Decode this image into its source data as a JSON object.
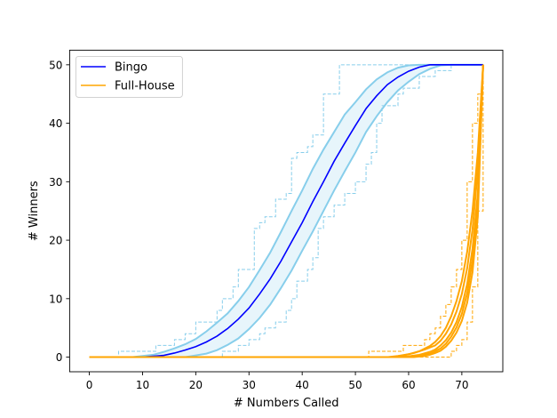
{
  "chart_data": {
    "type": "line",
    "title": "",
    "xlabel": "# Numbers Called",
    "ylabel": "# Winners",
    "xlim": [
      -3.7,
      77.7
    ],
    "ylim": [
      -2.5,
      52.5
    ],
    "xticks": [
      0,
      10,
      20,
      30,
      40,
      50,
      60,
      70
    ],
    "yticks": [
      0,
      10,
      20,
      30,
      40,
      50
    ],
    "legend_position": "top-left",
    "grid": false,
    "series": [
      {
        "name": "Bingo",
        "color": "#0000ff",
        "mean": [
          [
            0,
            0
          ],
          [
            10,
            0
          ],
          [
            14,
            0.3
          ],
          [
            16,
            0.7
          ],
          [
            18,
            1.2
          ],
          [
            20,
            1.8
          ],
          [
            22,
            2.6
          ],
          [
            24,
            3.6
          ],
          [
            26,
            4.9
          ],
          [
            28,
            6.5
          ],
          [
            30,
            8.4
          ],
          [
            32,
            10.8
          ],
          [
            34,
            13.4
          ],
          [
            36,
            16.4
          ],
          [
            38,
            19.7
          ],
          [
            40,
            23.0
          ],
          [
            42,
            26.6
          ],
          [
            44,
            30.0
          ],
          [
            46,
            33.5
          ],
          [
            48,
            36.6
          ],
          [
            50,
            39.6
          ],
          [
            52,
            42.5
          ],
          [
            54,
            44.7
          ],
          [
            56,
            46.6
          ],
          [
            58,
            47.9
          ],
          [
            60,
            48.9
          ],
          [
            62,
            49.6
          ],
          [
            64,
            50
          ],
          [
            74,
            50
          ]
        ],
        "band_color": "#87ceeb",
        "band_upper": [
          [
            0,
            0
          ],
          [
            8,
            0
          ],
          [
            12,
            0.4
          ],
          [
            14,
            0.9
          ],
          [
            16,
            1.5
          ],
          [
            18,
            2.2
          ],
          [
            20,
            3.1
          ],
          [
            22,
            4.4
          ],
          [
            24,
            5.9
          ],
          [
            26,
            7.5
          ],
          [
            28,
            9.6
          ],
          [
            30,
            12.0
          ],
          [
            32,
            14.9
          ],
          [
            34,
            17.9
          ],
          [
            36,
            21.4
          ],
          [
            38,
            25.0
          ],
          [
            40,
            28.5
          ],
          [
            42,
            32.2
          ],
          [
            44,
            35.5
          ],
          [
            46,
            38.5
          ],
          [
            48,
            41.5
          ],
          [
            50,
            43.6
          ],
          [
            52,
            45.8
          ],
          [
            54,
            47.5
          ],
          [
            56,
            48.7
          ],
          [
            58,
            49.5
          ],
          [
            60,
            49.9
          ],
          [
            62,
            50
          ],
          [
            74,
            50
          ]
        ],
        "band_lower": [
          [
            0,
            0
          ],
          [
            18,
            0
          ],
          [
            20,
            0.3
          ],
          [
            22,
            0.6
          ],
          [
            24,
            1.2
          ],
          [
            26,
            2.1
          ],
          [
            28,
            3.2
          ],
          [
            30,
            4.8
          ],
          [
            32,
            6.7
          ],
          [
            34,
            9.0
          ],
          [
            36,
            11.8
          ],
          [
            38,
            14.8
          ],
          [
            40,
            18.2
          ],
          [
            42,
            21.5
          ],
          [
            44,
            25.0
          ],
          [
            46,
            28.5
          ],
          [
            48,
            31.8
          ],
          [
            50,
            35.0
          ],
          [
            52,
            38.5
          ],
          [
            54,
            41.2
          ],
          [
            56,
            43.6
          ],
          [
            58,
            45.6
          ],
          [
            60,
            47.1
          ],
          [
            62,
            48.4
          ],
          [
            64,
            49.3
          ],
          [
            66,
            49.9
          ],
          [
            68,
            50
          ],
          [
            74,
            50
          ]
        ],
        "envelope_upper": [
          [
            0,
            0
          ],
          [
            5,
            0
          ],
          [
            5.5,
            1
          ],
          [
            12,
            1
          ],
          [
            12.5,
            2
          ],
          [
            15,
            2
          ],
          [
            16,
            3
          ],
          [
            18,
            4
          ],
          [
            20,
            6
          ],
          [
            22,
            6
          ],
          [
            24,
            8
          ],
          [
            25,
            10
          ],
          [
            27,
            12
          ],
          [
            28,
            15
          ],
          [
            30,
            15
          ],
          [
            31,
            22
          ],
          [
            32,
            23
          ],
          [
            33,
            24
          ],
          [
            34,
            24
          ],
          [
            35,
            27
          ],
          [
            36,
            27
          ],
          [
            37,
            28
          ],
          [
            38,
            34
          ],
          [
            39,
            35
          ],
          [
            40,
            35
          ],
          [
            41,
            36
          ],
          [
            42,
            38
          ],
          [
            44,
            45
          ],
          [
            45,
            45
          ],
          [
            47,
            50
          ],
          [
            74,
            50
          ]
        ],
        "envelope_lower": [
          [
            0,
            0
          ],
          [
            24,
            0
          ],
          [
            25,
            1
          ],
          [
            27,
            1
          ],
          [
            28,
            2
          ],
          [
            30,
            3
          ],
          [
            31,
            3
          ],
          [
            32,
            4
          ],
          [
            33,
            5
          ],
          [
            34,
            5
          ],
          [
            35,
            6
          ],
          [
            36,
            6
          ],
          [
            37,
            8
          ],
          [
            38,
            10
          ],
          [
            39,
            13
          ],
          [
            41,
            15
          ],
          [
            42,
            17
          ],
          [
            43,
            22
          ],
          [
            44,
            24
          ],
          [
            46,
            26
          ],
          [
            48,
            28
          ],
          [
            50,
            30
          ],
          [
            52,
            33
          ],
          [
            53,
            35
          ],
          [
            54,
            40
          ],
          [
            55,
            43
          ],
          [
            56,
            43
          ],
          [
            58,
            45
          ],
          [
            59,
            46
          ],
          [
            61,
            46
          ],
          [
            62,
            48
          ],
          [
            64,
            48
          ],
          [
            65,
            49
          ],
          [
            67,
            49
          ],
          [
            68,
            50
          ],
          [
            74,
            50
          ]
        ],
        "envelope_color": "#87ceeb"
      },
      {
        "name": "Full-House",
        "color": "#ffa500",
        "mean": [
          [
            0,
            0
          ],
          [
            58,
            0
          ],
          [
            60,
            0.15
          ],
          [
            62,
            0.4
          ],
          [
            64,
            0.9
          ],
          [
            65,
            1.3
          ],
          [
            66,
            2.0
          ],
          [
            67,
            2.9
          ],
          [
            68,
            4.2
          ],
          [
            69,
            6.0
          ],
          [
            70,
            8.6
          ],
          [
            71,
            12.5
          ],
          [
            72,
            18.5
          ],
          [
            73,
            28.0
          ],
          [
            74,
            50
          ]
        ],
        "band_upper": [
          [
            0,
            0
          ],
          [
            56,
            0
          ],
          [
            58,
            0.2
          ],
          [
            60,
            0.5
          ],
          [
            62,
            1.0
          ],
          [
            64,
            1.9
          ],
          [
            65,
            2.6
          ],
          [
            66,
            3.6
          ],
          [
            67,
            5.0
          ],
          [
            68,
            7.0
          ],
          [
            69,
            9.6
          ],
          [
            70,
            13.0
          ],
          [
            71,
            18.0
          ],
          [
            72,
            25.0
          ],
          [
            73,
            35.0
          ],
          [
            74,
            50
          ]
        ],
        "band_lower": [
          [
            0,
            0
          ],
          [
            61,
            0
          ],
          [
            63,
            0.2
          ],
          [
            64,
            0.4
          ],
          [
            65,
            0.7
          ],
          [
            66,
            1.1
          ],
          [
            67,
            1.8
          ],
          [
            68,
            2.8
          ],
          [
            69,
            4.2
          ],
          [
            70,
            6.2
          ],
          [
            71,
            9.3
          ],
          [
            72,
            14.5
          ],
          [
            73,
            24.0
          ],
          [
            74,
            50
          ]
        ],
        "band_upper_2": [
          [
            0,
            0
          ],
          [
            57,
            0
          ],
          [
            59,
            0.3
          ],
          [
            61,
            0.7
          ],
          [
            63,
            1.3
          ],
          [
            65,
            2.0
          ],
          [
            66,
            2.8
          ],
          [
            67,
            4.0
          ],
          [
            68,
            5.6
          ],
          [
            69,
            7.8
          ],
          [
            70,
            10.8
          ],
          [
            71,
            15.2
          ],
          [
            72,
            21.8
          ],
          [
            73,
            32.0
          ],
          [
            74,
            50
          ]
        ],
        "band_lower_2": [
          [
            0,
            0
          ],
          [
            60,
            0
          ],
          [
            62,
            0.25
          ],
          [
            64,
            0.6
          ],
          [
            65,
            1.0
          ],
          [
            66,
            1.5
          ],
          [
            67,
            2.3
          ],
          [
            68,
            3.5
          ],
          [
            69,
            5.1
          ],
          [
            70,
            7.4
          ],
          [
            71,
            10.9
          ],
          [
            72,
            16.5
          ],
          [
            73,
            26.0
          ],
          [
            74,
            50
          ]
        ],
        "envelope_upper": [
          [
            0,
            0
          ],
          [
            52,
            0
          ],
          [
            52.5,
            1
          ],
          [
            58,
            1
          ],
          [
            59,
            2
          ],
          [
            62,
            2
          ],
          [
            63,
            3
          ],
          [
            64,
            4
          ],
          [
            65,
            5
          ],
          [
            66,
            7
          ],
          [
            67,
            9
          ],
          [
            68,
            12
          ],
          [
            69,
            15
          ],
          [
            70,
            20
          ],
          [
            71,
            30
          ],
          [
            72,
            40
          ],
          [
            73,
            45
          ],
          [
            74,
            50
          ]
        ],
        "envelope_lower": [
          [
            0,
            0
          ],
          [
            67,
            0
          ],
          [
            68,
            1
          ],
          [
            69,
            2
          ],
          [
            70,
            3
          ],
          [
            71,
            6
          ],
          [
            72,
            12
          ],
          [
            73,
            25
          ],
          [
            74,
            50
          ]
        ]
      }
    ]
  }
}
